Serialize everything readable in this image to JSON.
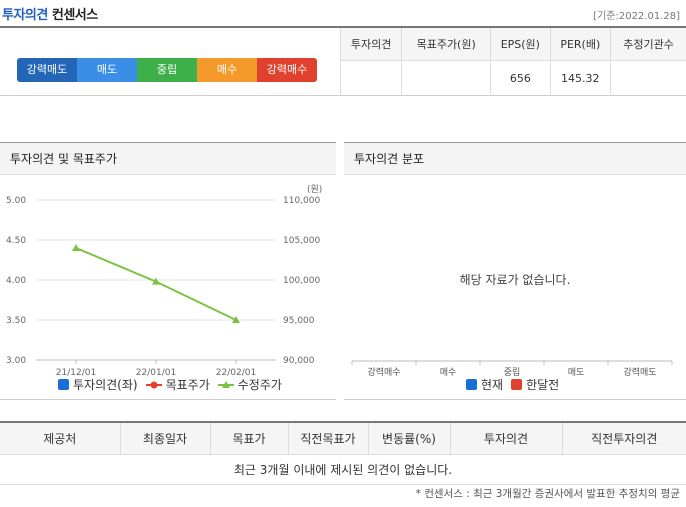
{
  "header": {
    "title_highlight": "투자의견",
    "title_rest": "컨센서스",
    "date": "[기준:2022.01.28]"
  },
  "opinion_scale": [
    {
      "label": "강력매도",
      "color": "#2366b8"
    },
    {
      "label": "매도",
      "color": "#3a8ee6"
    },
    {
      "label": "중립",
      "color": "#3db04a"
    },
    {
      "label": "매수",
      "color": "#f39a2a"
    },
    {
      "label": "강력매수",
      "color": "#e0402e"
    }
  ],
  "consensus_table": {
    "headers": [
      "투자의견",
      "목표주가(원)",
      "EPS(원)",
      "PER(배)",
      "추정기관수"
    ],
    "row": [
      "",
      "",
      "656",
      "145.32",
      ""
    ]
  },
  "left_panel": {
    "title": "투자의견 및 목표주가",
    "legend": [
      {
        "label": "투자의견(좌)",
        "color": "#1a6fd6"
      },
      {
        "label": "목표주가",
        "color": "#e0402e"
      },
      {
        "label": "수정주가",
        "color": "#7cc242"
      }
    ]
  },
  "right_panel": {
    "title": "투자의견 분포",
    "no_data": "해당 자료가 없습니다.",
    "categories": [
      "강력매수",
      "매수",
      "중립",
      "매도",
      "강력매도"
    ],
    "legend": [
      {
        "label": "현재",
        "color": "#1a6fd6"
      },
      {
        "label": "한달전",
        "color": "#e0402e"
      }
    ]
  },
  "chart_data": {
    "type": "line",
    "x": [
      "21/12/01",
      "22/01/01",
      "22/02/01"
    ],
    "y_left": {
      "ticks": [
        "5.00",
        "4.50",
        "4.00",
        "3.50",
        "3.00"
      ],
      "range": [
        3.0,
        5.0
      ]
    },
    "y_right": {
      "unit": "(원)",
      "ticks": [
        "110,000",
        "105,000",
        "100,000",
        "95,000",
        "90,000"
      ],
      "range": [
        90000,
        110000
      ]
    },
    "series": [
      {
        "name": "수정주가",
        "color": "#7cc242",
        "axis": "right",
        "values": [
          104000,
          99800,
          95000
        ]
      }
    ]
  },
  "bottom_table": {
    "headers": [
      "제공처",
      "최종일자",
      "목표가",
      "직전목표가",
      "변동률(%)",
      "투자의견",
      "직전투자의견"
    ],
    "empty_message": "최근 3개월 이내에 제시된 의견이 없습니다."
  },
  "footnote": "* 컨센서스 : 최근 3개월간 증권사에서 발표한 추정치의 평균"
}
